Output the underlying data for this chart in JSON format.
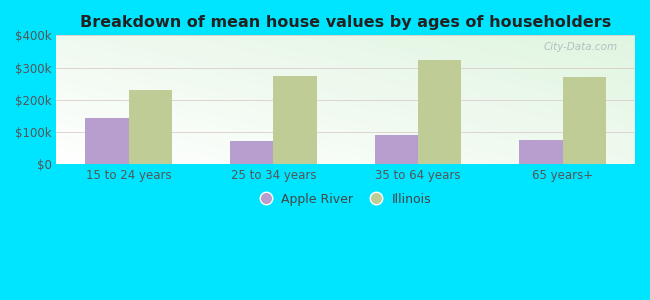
{
  "title": "Breakdown of mean house values by ages of householders",
  "categories": [
    "15 to 24 years",
    "25 to 34 years",
    "35 to 64 years",
    "65 years+"
  ],
  "apple_river": [
    145000,
    72000,
    90000,
    75000
  ],
  "illinois": [
    230000,
    275000,
    325000,
    270000
  ],
  "apple_river_color": "#b89ece",
  "illinois_color": "#bfcc96",
  "background_color": "#00e5ff",
  "ylim": [
    0,
    400000
  ],
  "yticks": [
    0,
    100000,
    200000,
    300000,
    400000
  ],
  "ytick_labels": [
    "$0",
    "$100k",
    "$200k",
    "$300k",
    "$400k"
  ],
  "legend_apple_river": "Apple River",
  "legend_illinois": "Illinois",
  "watermark": "City-Data.com",
  "bar_width": 0.3
}
